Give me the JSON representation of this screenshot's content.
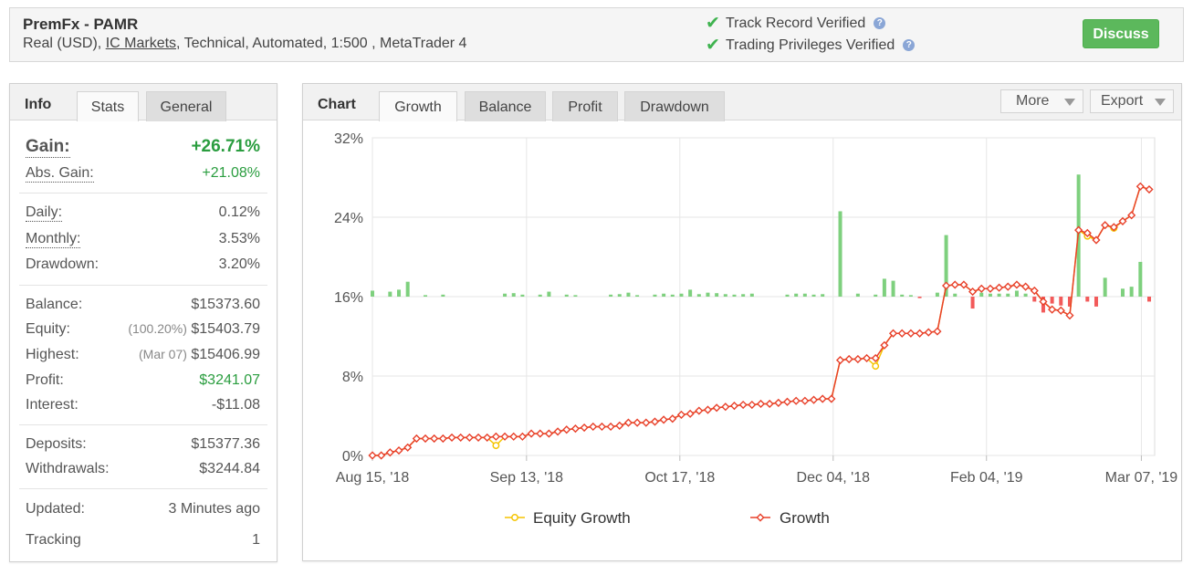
{
  "header": {
    "title": "PremFx - PAMR",
    "sub_prefix": "Real (USD), ",
    "broker": "IC Markets",
    "sub_suffix": ", Technical, Automated, 1:500 , MetaTrader 4",
    "verified_1": "Track Record Verified",
    "verified_2": "Trading Privileges Verified",
    "help_glyph": "?",
    "discuss_label": "Discuss"
  },
  "info_panel": {
    "tabs": [
      "Info",
      "Stats",
      "General"
    ],
    "gain_label": "Gain:",
    "gain_value": "+26.71%",
    "abs_gain_label": "Abs. Gain:",
    "abs_gain_value": "+21.08%",
    "daily_label": "Daily:",
    "daily_value": "0.12%",
    "monthly_label": "Monthly:",
    "monthly_value": "3.53%",
    "drawdown_label": "Drawdown:",
    "drawdown_value": "3.20%",
    "balance_label": "Balance:",
    "balance_value": "$15373.60",
    "equity_label": "Equity:",
    "equity_pct": "(100.20%)",
    "equity_value": "$15403.79",
    "highest_label": "Highest:",
    "highest_date": "(Mar 07)",
    "highest_value": "$15406.99",
    "profit_label": "Profit:",
    "profit_value": "$3241.07",
    "interest_label": "Interest:",
    "interest_value": "-$11.08",
    "deposits_label": "Deposits:",
    "deposits_value": "$15377.36",
    "withdrawals_label": "Withdrawals:",
    "withdrawals_value": "$3244.84",
    "updated_label": "Updated:",
    "updated_value": "3 Minutes ago",
    "tracking_label": "Tracking",
    "tracking_value": "1"
  },
  "chart_panel": {
    "title": "Chart",
    "tabs": [
      "Growth",
      "Balance",
      "Profit",
      "Drawdown"
    ],
    "more_label": "More",
    "export_label": "Export"
  },
  "colors": {
    "growth": "#e8402a",
    "equity": "#f5c400",
    "bar_pos": "#7ed07e",
    "bar_neg": "#f25a5a",
    "accent_green": "#5cb85c"
  },
  "chart_data": {
    "type": "line",
    "y_ticks": [
      "0%",
      "8%",
      "16%",
      "24%",
      "32%"
    ],
    "ylim": [
      0,
      32
    ],
    "x_ticks": [
      "Aug 15, '18",
      "Sep 13, '18",
      "Oct 17, '18",
      "Dec 04, '18",
      "Feb 04, '19",
      "Mar 07, '19"
    ],
    "legend": [
      "Equity Growth",
      "Growth"
    ],
    "growth": [
      0,
      0,
      0.3,
      0.5,
      0.8,
      1.7,
      1.7,
      1.7,
      1.7,
      1.8,
      1.8,
      1.8,
      1.8,
      1.8,
      1.9,
      1.9,
      1.9,
      1.9,
      2.2,
      2.2,
      2.2,
      2.4,
      2.6,
      2.7,
      2.8,
      2.9,
      2.9,
      2.9,
      3.0,
      3.3,
      3.3,
      3.3,
      3.4,
      3.6,
      3.7,
      4.1,
      4.2,
      4.5,
      4.6,
      4.8,
      4.9,
      5.0,
      5.1,
      5.1,
      5.2,
      5.2,
      5.3,
      5.4,
      5.5,
      5.5,
      5.6,
      5.7,
      5.7,
      9.6,
      9.7,
      9.7,
      9.8,
      9.8,
      11.1,
      12.3,
      12.3,
      12.3,
      12.3,
      12.4,
      12.5,
      17.1,
      17.2,
      17.2,
      16.5,
      16.8,
      16.8,
      16.9,
      17.0,
      17.2,
      17.0,
      16.6,
      15.5,
      14.7,
      14.6,
      14.1,
      22.7,
      22.4,
      21.7,
      23.2,
      23.0,
      23.6,
      24.2,
      27.1,
      26.8
    ],
    "equity": [
      0,
      0,
      0.3,
      0.5,
      0.8,
      1.7,
      1.7,
      1.7,
      1.7,
      1.8,
      1.8,
      1.8,
      1.8,
      1.8,
      1.0,
      1.9,
      1.9,
      1.9,
      2.2,
      2.2,
      2.2,
      2.4,
      2.6,
      2.7,
      2.8,
      2.9,
      2.9,
      2.9,
      3.0,
      3.3,
      3.3,
      3.3,
      3.4,
      3.6,
      3.7,
      4.1,
      4.2,
      4.5,
      4.6,
      4.8,
      4.9,
      5.0,
      5.1,
      5.1,
      5.2,
      5.2,
      5.3,
      5.4,
      5.5,
      5.5,
      5.6,
      5.7,
      5.7,
      9.6,
      9.7,
      9.7,
      9.8,
      9.0,
      11.1,
      12.3,
      12.3,
      12.3,
      12.3,
      12.4,
      12.5,
      17.1,
      17.2,
      17.2,
      16.5,
      16.8,
      16.8,
      16.9,
      17.0,
      17.2,
      17.0,
      16.6,
      15.5,
      14.7,
      14.6,
      14.1,
      22.7,
      22.1,
      21.7,
      23.2,
      22.9,
      23.6,
      24.2,
      27.1,
      26.8
    ],
    "bars": [
      0.6,
      0,
      0.5,
      0.7,
      1.5,
      0,
      0.15,
      0,
      0.2,
      0,
      0,
      0,
      0,
      0,
      0,
      0.3,
      0.35,
      0.2,
      0,
      0.2,
      0.5,
      0,
      0.2,
      0.15,
      0,
      0,
      0,
      0.2,
      0.25,
      0.4,
      0.15,
      0,
      0.2,
      0.3,
      0.2,
      0.3,
      0.7,
      0.25,
      0.4,
      0.35,
      0.25,
      0.2,
      0.25,
      0.3,
      0,
      0,
      0,
      0.2,
      0.3,
      0.3,
      0.2,
      0.25,
      0,
      8.6,
      0,
      0.3,
      0,
      0.2,
      1.8,
      1.6,
      0.2,
      0.15,
      -0.15,
      0,
      0.4,
      6.2,
      0.3,
      0,
      -1.2,
      0.4,
      0.3,
      0.3,
      0.3,
      0.6,
      0.3,
      -0.5,
      -1.6,
      -0.7,
      -0.9,
      -1.0,
      12.3,
      -0.5,
      -1.0,
      1.9,
      0,
      0.8,
      1.0,
      3.5,
      -0.5
    ]
  }
}
